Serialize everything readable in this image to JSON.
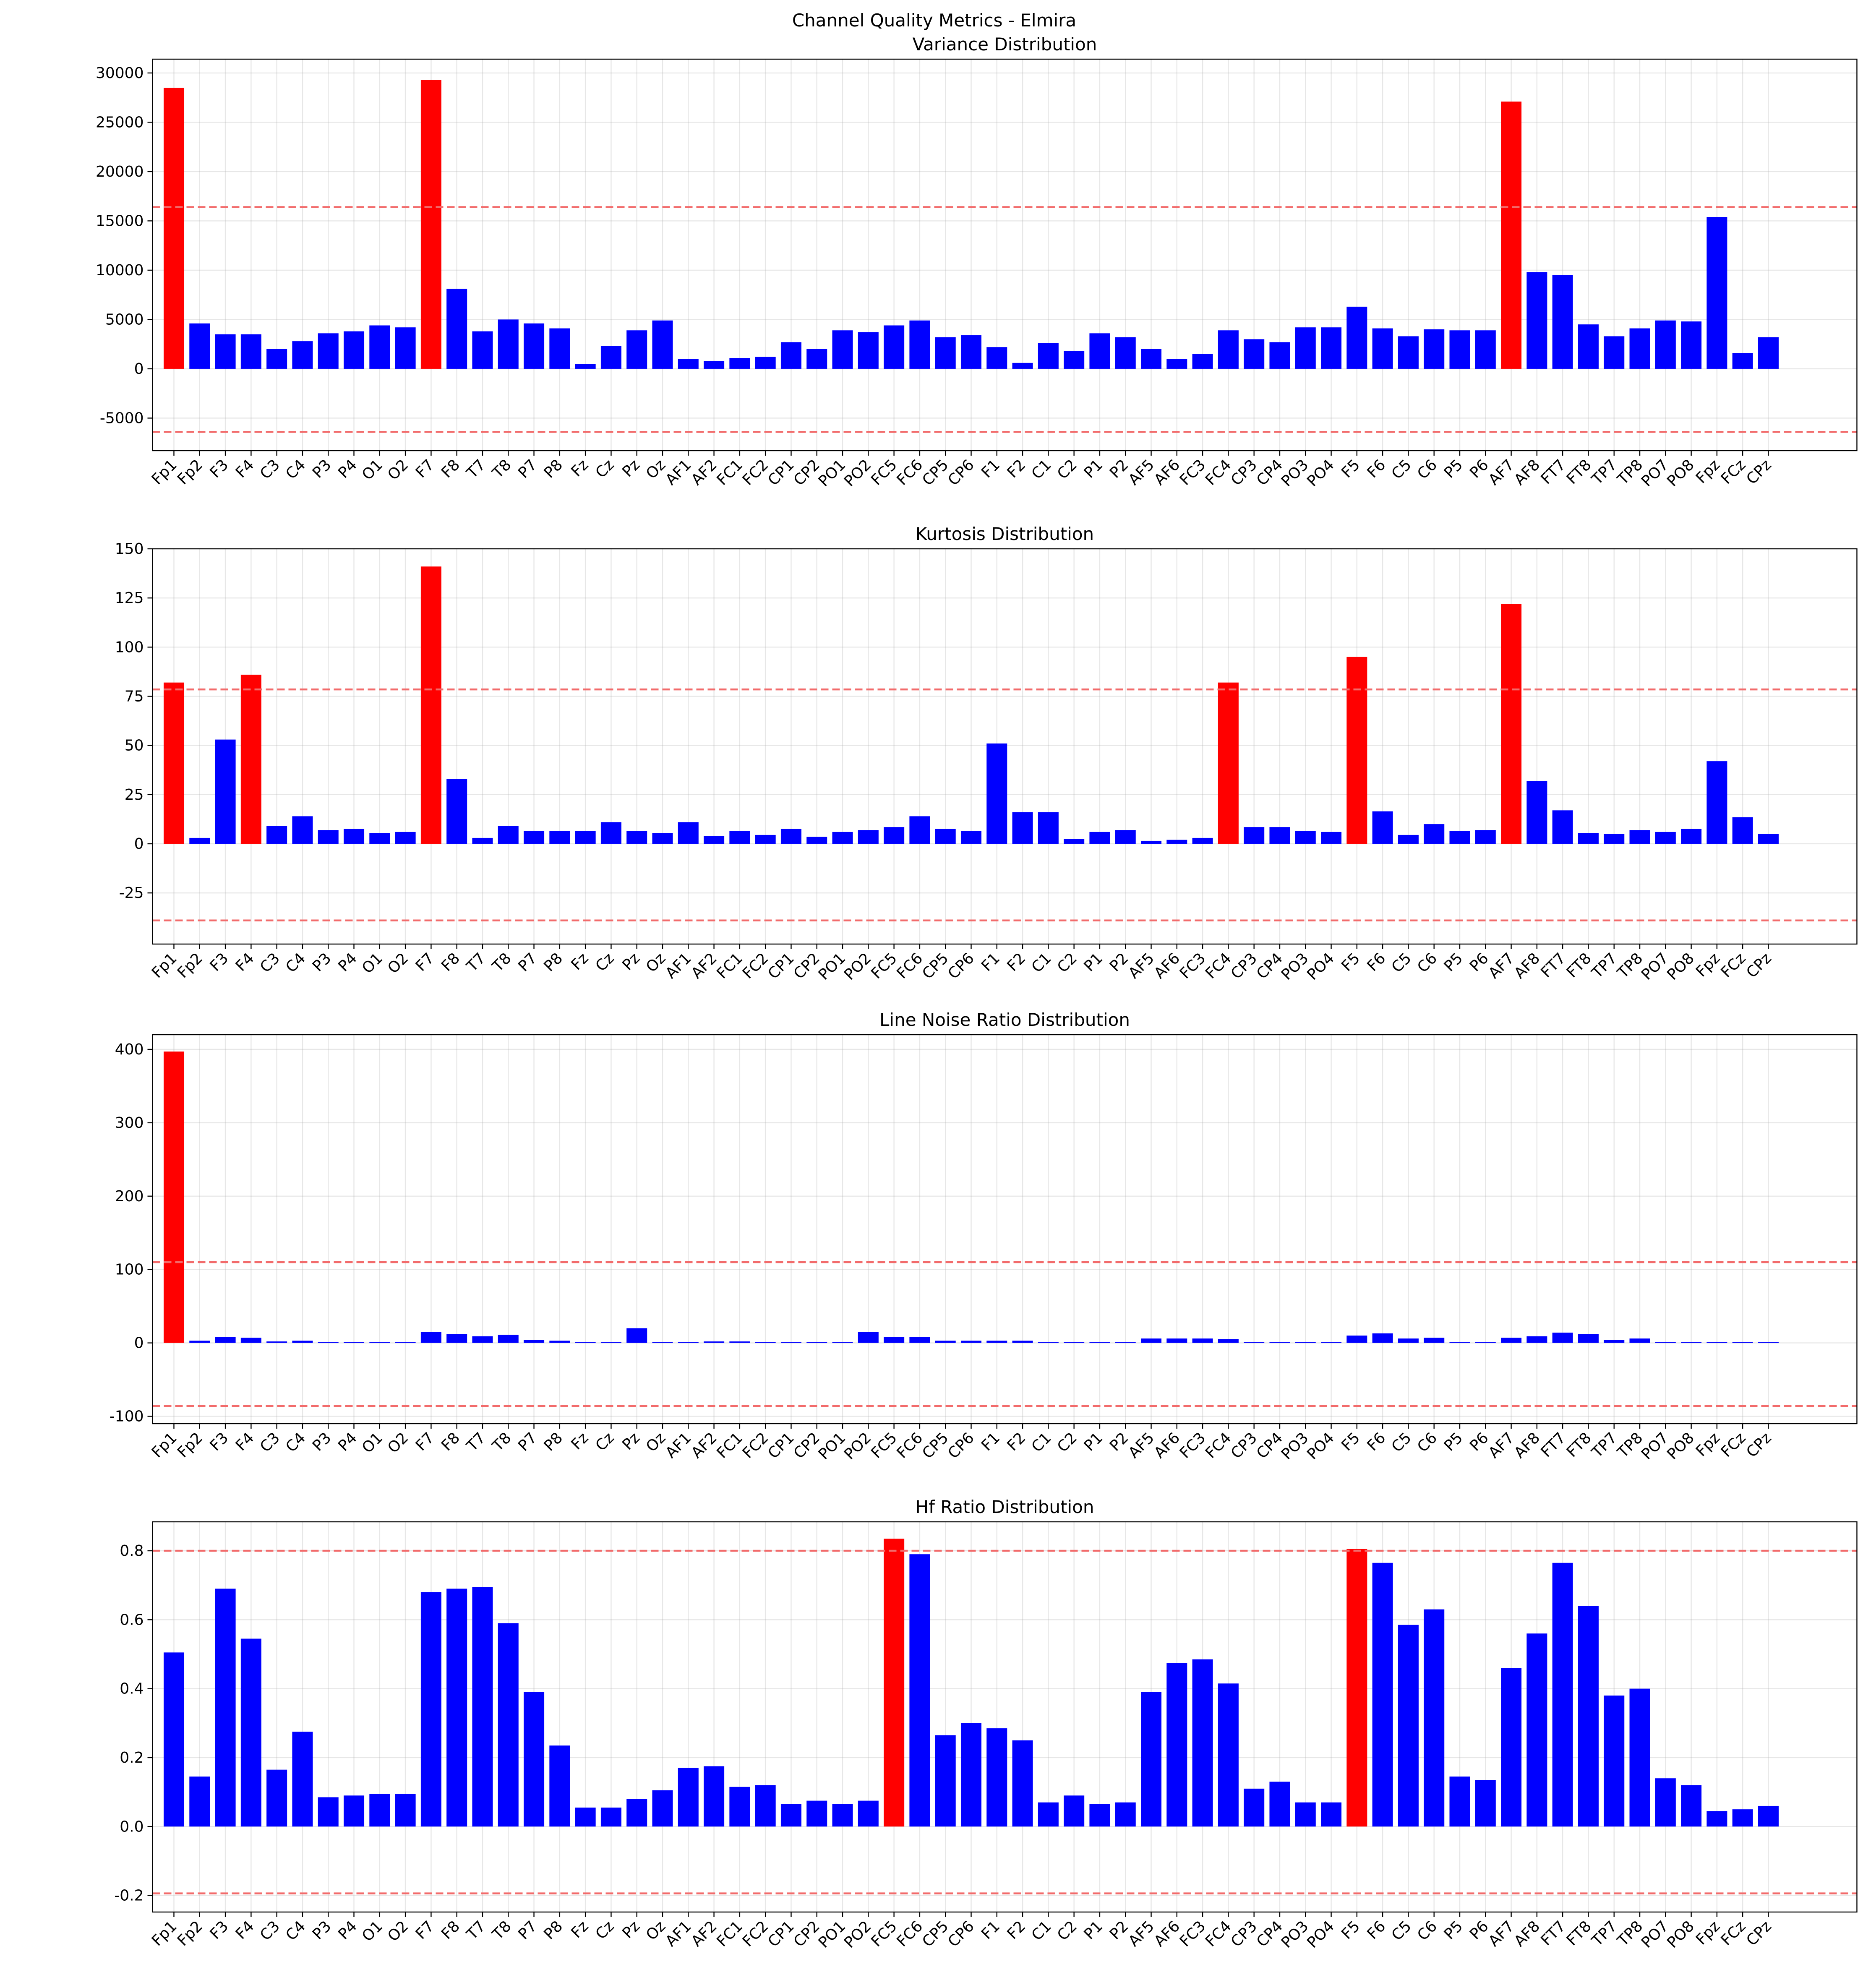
{
  "title": "Channel Quality Metrics - Elmira",
  "chart_data": [
    {
      "type": "bar",
      "title": "Variance Distribution",
      "categories": [
        "Fp1",
        "Fp2",
        "F3",
        "F4",
        "C3",
        "C4",
        "P3",
        "P4",
        "O1",
        "O2",
        "F7",
        "F8",
        "T7",
        "T8",
        "P7",
        "P8",
        "Fz",
        "Cz",
        "Pz",
        "Oz",
        "AF1",
        "AF2",
        "FC1",
        "FC2",
        "CP1",
        "CP2",
        "PO1",
        "PO2",
        "FC5",
        "FC6",
        "CP5",
        "CP6",
        "F1",
        "F2",
        "C1",
        "C2",
        "P1",
        "P2",
        "AF5",
        "AF6",
        "FC3",
        "FC4",
        "CP3",
        "CP4",
        "PO3",
        "PO4",
        "F5",
        "F6",
        "C5",
        "C6",
        "P5",
        "P6",
        "AF7",
        "AF8",
        "FT7",
        "FT8",
        "TP7",
        "TP8",
        "PO7",
        "PO8",
        "Fpz",
        "FCz",
        "CPz"
      ],
      "values": [
        28500,
        4600,
        3500,
        3500,
        2000,
        2800,
        3600,
        3800,
        4400,
        4200,
        29300,
        8100,
        3800,
        5000,
        4600,
        4100,
        500,
        2300,
        3900,
        4900,
        1000,
        800,
        1100,
        1200,
        2700,
        2000,
        3900,
        3700,
        4400,
        4900,
        3200,
        3400,
        2200,
        600,
        2600,
        1800,
        3600,
        3200,
        2000,
        1000,
        1500,
        3900,
        3000,
        2700,
        4200,
        4200,
        6300,
        4100,
        3300,
        4000,
        3900,
        3900,
        27100,
        9800,
        9500,
        4500,
        3300,
        4100,
        4900,
        4800,
        15400,
        1600,
        3200
      ],
      "colors": [
        "red",
        "blue",
        "blue",
        "blue",
        "blue",
        "blue",
        "blue",
        "blue",
        "blue",
        "blue",
        "red",
        "blue",
        "blue",
        "blue",
        "blue",
        "blue",
        "blue",
        "blue",
        "blue",
        "blue",
        "blue",
        "blue",
        "blue",
        "blue",
        "blue",
        "blue",
        "blue",
        "blue",
        "blue",
        "blue",
        "blue",
        "blue",
        "blue",
        "blue",
        "blue",
        "blue",
        "blue",
        "blue",
        "blue",
        "blue",
        "blue",
        "blue",
        "blue",
        "blue",
        "blue",
        "blue",
        "blue",
        "blue",
        "blue",
        "blue",
        "blue",
        "blue",
        "red",
        "blue",
        "blue",
        "blue",
        "blue",
        "blue",
        "blue",
        "blue",
        "blue",
        "blue",
        "blue"
      ],
      "ylim": [
        -8300,
        31400
      ],
      "yticks": [
        -5000,
        0,
        5000,
        10000,
        15000,
        20000,
        25000,
        30000
      ],
      "thresholds": [
        16400,
        -6400
      ],
      "threshold_color": "#f26b6b",
      "grid": true
    },
    {
      "type": "bar",
      "title": "Kurtosis Distribution",
      "categories": [
        "Fp1",
        "Fp2",
        "F3",
        "F4",
        "C3",
        "C4",
        "P3",
        "P4",
        "O1",
        "O2",
        "F7",
        "F8",
        "T7",
        "T8",
        "P7",
        "P8",
        "Fz",
        "Cz",
        "Pz",
        "Oz",
        "AF1",
        "AF2",
        "FC1",
        "FC2",
        "CP1",
        "CP2",
        "PO1",
        "PO2",
        "FC5",
        "FC6",
        "CP5",
        "CP6",
        "F1",
        "F2",
        "C1",
        "C2",
        "P1",
        "P2",
        "AF5",
        "AF6",
        "FC3",
        "FC4",
        "CP3",
        "CP4",
        "PO3",
        "PO4",
        "F5",
        "F6",
        "C5",
        "C6",
        "P5",
        "P6",
        "AF7",
        "AF8",
        "FT7",
        "FT8",
        "TP7",
        "TP8",
        "PO7",
        "PO8",
        "Fpz",
        "FCz",
        "CPz"
      ],
      "values": [
        82,
        3,
        53,
        86,
        9,
        14,
        7,
        7.5,
        5.5,
        6,
        141,
        33,
        3,
        9,
        6.5,
        6.5,
        6.5,
        11,
        6.5,
        5.5,
        11,
        4,
        6.5,
        4.5,
        7.5,
        3.5,
        6,
        7,
        8.5,
        14,
        7.5,
        6.5,
        51,
        16,
        16,
        2.5,
        6,
        7,
        1.5,
        2,
        3,
        82,
        8.5,
        8.5,
        6.5,
        6,
        95,
        16.5,
        4.5,
        10,
        6.5,
        7,
        122,
        32,
        17,
        5.5,
        5,
        7,
        6,
        7.5,
        42,
        13.5,
        5
      ],
      "colors": [
        "red",
        "blue",
        "blue",
        "red",
        "blue",
        "blue",
        "blue",
        "blue",
        "blue",
        "blue",
        "red",
        "blue",
        "blue",
        "blue",
        "blue",
        "blue",
        "blue",
        "blue",
        "blue",
        "blue",
        "blue",
        "blue",
        "blue",
        "blue",
        "blue",
        "blue",
        "blue",
        "blue",
        "blue",
        "blue",
        "blue",
        "blue",
        "blue",
        "blue",
        "blue",
        "blue",
        "blue",
        "blue",
        "blue",
        "blue",
        "blue",
        "red",
        "blue",
        "blue",
        "blue",
        "blue",
        "red",
        "blue",
        "blue",
        "blue",
        "blue",
        "blue",
        "red",
        "blue",
        "blue",
        "blue",
        "blue",
        "blue",
        "blue",
        "blue",
        "blue",
        "blue",
        "blue"
      ],
      "ylim": [
        -51,
        150
      ],
      "yticks": [
        -25,
        0,
        25,
        50,
        75,
        100,
        125,
        150
      ],
      "thresholds": [
        78.5,
        -39
      ],
      "threshold_color": "#f26b6b",
      "grid": true
    },
    {
      "type": "bar",
      "title": "Line Noise Ratio Distribution",
      "categories": [
        "Fp1",
        "Fp2",
        "F3",
        "F4",
        "C3",
        "C4",
        "P3",
        "P4",
        "O1",
        "O2",
        "F7",
        "F8",
        "T7",
        "T8",
        "P7",
        "P8",
        "Fz",
        "Cz",
        "Pz",
        "Oz",
        "AF1",
        "AF2",
        "FC1",
        "FC2",
        "CP1",
        "CP2",
        "PO1",
        "PO2",
        "FC5",
        "FC6",
        "CP5",
        "CP6",
        "F1",
        "F2",
        "C1",
        "C2",
        "P1",
        "P2",
        "AF5",
        "AF6",
        "FC3",
        "FC4",
        "CP3",
        "CP4",
        "PO3",
        "PO4",
        "F5",
        "F6",
        "C5",
        "C6",
        "P5",
        "P6",
        "AF7",
        "AF8",
        "FT7",
        "FT8",
        "TP7",
        "TP8",
        "PO7",
        "PO8",
        "Fpz",
        "FCz",
        "CPz"
      ],
      "values": [
        397,
        3,
        8,
        7,
        2,
        3,
        1,
        1,
        1,
        1,
        15,
        12,
        9,
        11,
        4,
        3,
        1,
        1,
        20,
        1,
        1,
        2,
        2,
        1,
        1,
        1,
        1,
        15,
        8,
        8,
        3,
        3,
        3,
        3,
        1,
        1,
        1,
        1,
        6,
        6,
        6,
        5,
        1,
        1,
        1,
        1,
        10,
        13,
        6,
        7,
        1,
        1,
        7,
        9,
        14,
        12,
        4,
        6,
        1,
        1,
        1,
        1,
        1
      ],
      "colors": [
        "red",
        "blue",
        "blue",
        "blue",
        "blue",
        "blue",
        "blue",
        "blue",
        "blue",
        "blue",
        "blue",
        "blue",
        "blue",
        "blue",
        "blue",
        "blue",
        "blue",
        "blue",
        "blue",
        "blue",
        "blue",
        "blue",
        "blue",
        "blue",
        "blue",
        "blue",
        "blue",
        "blue",
        "blue",
        "blue",
        "blue",
        "blue",
        "blue",
        "blue",
        "blue",
        "blue",
        "blue",
        "blue",
        "blue",
        "blue",
        "blue",
        "blue",
        "blue",
        "blue",
        "blue",
        "blue",
        "blue",
        "blue",
        "blue",
        "blue",
        "blue",
        "blue",
        "blue",
        "blue",
        "blue",
        "blue",
        "blue",
        "blue",
        "blue",
        "blue",
        "blue",
        "blue",
        "blue"
      ],
      "ylim": [
        -110,
        420
      ],
      "yticks": [
        -100,
        0,
        100,
        200,
        300,
        400
      ],
      "thresholds": [
        110,
        -86
      ],
      "threshold_color": "#f26b6b",
      "grid": true
    },
    {
      "type": "bar",
      "title": "Hf Ratio Distribution",
      "categories": [
        "Fp1",
        "Fp2",
        "F3",
        "F4",
        "C3",
        "C4",
        "P3",
        "P4",
        "O1",
        "O2",
        "F7",
        "F8",
        "T7",
        "T8",
        "P7",
        "P8",
        "Fz",
        "Cz",
        "Pz",
        "Oz",
        "AF1",
        "AF2",
        "FC1",
        "FC2",
        "CP1",
        "CP2",
        "PO1",
        "PO2",
        "FC5",
        "FC6",
        "CP5",
        "CP6",
        "F1",
        "F2",
        "C1",
        "C2",
        "P1",
        "P2",
        "AF5",
        "AF6",
        "FC3",
        "FC4",
        "CP3",
        "CP4",
        "PO3",
        "PO4",
        "F5",
        "F6",
        "C5",
        "C6",
        "P5",
        "P6",
        "AF7",
        "AF8",
        "FT7",
        "FT8",
        "TP7",
        "TP8",
        "PO7",
        "PO8",
        "Fpz",
        "FCz",
        "CPz"
      ],
      "values": [
        0.505,
        0.145,
        0.69,
        0.545,
        0.165,
        0.275,
        0.085,
        0.09,
        0.095,
        0.095,
        0.68,
        0.69,
        0.695,
        0.59,
        0.39,
        0.235,
        0.055,
        0.055,
        0.08,
        0.105,
        0.17,
        0.175,
        0.115,
        0.12,
        0.065,
        0.075,
        0.065,
        0.075,
        0.835,
        0.79,
        0.265,
        0.3,
        0.285,
        0.25,
        0.07,
        0.09,
        0.065,
        0.07,
        0.39,
        0.475,
        0.485,
        0.415,
        0.11,
        0.13,
        0.07,
        0.07,
        0.805,
        0.765,
        0.585,
        0.63,
        0.145,
        0.135,
        0.46,
        0.56,
        0.765,
        0.64,
        0.38,
        0.4,
        0.14,
        0.12,
        0.045,
        0.05,
        0.06
      ],
      "colors": [
        "blue",
        "blue",
        "blue",
        "blue",
        "blue",
        "blue",
        "blue",
        "blue",
        "blue",
        "blue",
        "blue",
        "blue",
        "blue",
        "blue",
        "blue",
        "blue",
        "blue",
        "blue",
        "blue",
        "blue",
        "blue",
        "blue",
        "blue",
        "blue",
        "blue",
        "blue",
        "blue",
        "blue",
        "red",
        "blue",
        "blue",
        "blue",
        "blue",
        "blue",
        "blue",
        "blue",
        "blue",
        "blue",
        "blue",
        "blue",
        "blue",
        "blue",
        "blue",
        "blue",
        "blue",
        "blue",
        "red",
        "blue",
        "blue",
        "blue",
        "blue",
        "blue",
        "blue",
        "blue",
        "blue",
        "blue",
        "blue",
        "blue",
        "blue",
        "blue",
        "blue",
        "blue",
        "blue"
      ],
      "ylim": [
        -0.248,
        0.884
      ],
      "yticks": [
        -0.2,
        {
          "value": 0,
          "label": "0.0"
        },
        0.2,
        0.4,
        0.6,
        0.8
      ],
      "thresholds": [
        0.8,
        -0.194
      ],
      "threshold_color": "#f26b6b",
      "grid": true
    }
  ]
}
